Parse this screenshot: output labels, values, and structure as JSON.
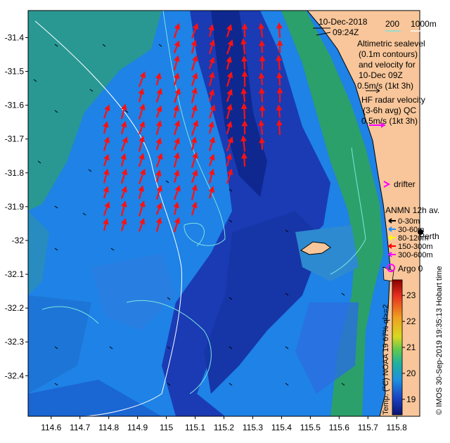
{
  "title": {
    "date": "10-Dec-2018",
    "time": "09:24Z"
  },
  "depth_legend": {
    "label_200": "200",
    "label_1000": "1000m",
    "contour_color": "#7fe3e0"
  },
  "altimetry_note": {
    "lines": [
      "Altimetric sealevel",
      "(0.1m contours)",
      "and velocity for",
      "10-Dec 09Z",
      "0.5m/s (1kt 3h)"
    ],
    "arrow_color": "#000000"
  },
  "hf_radar_note": {
    "lines": [
      "HF radar velocity",
      "(3-6h avg) QC",
      "0.5m/s (1kt 3h)"
    ],
    "arrow_color": "#ff00ff"
  },
  "drifter": {
    "label": "drifter",
    "color": "#ff00ff"
  },
  "anmn": {
    "title": "ANMN 12h av.",
    "items": [
      {
        "label": "0-30m",
        "color": "#000000"
      },
      {
        "label": "30-60m",
        "color": "#1e90ff"
      },
      {
        "label": "80-120m",
        "color": "#ffff00"
      },
      {
        "label": "150-300m",
        "color": "#ff0000"
      },
      {
        "label": "300-600m",
        "color": "#ff00ff"
      }
    ]
  },
  "city": {
    "label": "Perth"
  },
  "argo": {
    "label": "Argo 0",
    "color": "#ff00ff"
  },
  "colorbar": {
    "title": "Temp. (°C) NOAA 19 67% ql>=2",
    "ticks": [
      "23",
      "22",
      "21",
      "20",
      "19"
    ],
    "range": [
      18.4,
      23.6
    ]
  },
  "credit": "© IMOS 30-Sep-2019 19:35:13 Hobart time",
  "axes": {
    "x_ticks": [
      "114.6",
      "114.7",
      "114.8",
      "114.9",
      "115",
      "115.1",
      "115.2",
      "115.3",
      "115.4",
      "115.5",
      "115.6",
      "115.7",
      "115.8"
    ],
    "y_ticks": [
      "-31.4",
      "-31.5",
      "-31.6",
      "-31.7",
      "-31.8",
      "-31.9",
      "-32",
      "-32.1",
      "-32.2",
      "-32.3",
      "-32.4"
    ],
    "lon_range": [
      114.52,
      115.88
    ],
    "lat_range": [
      -32.52,
      -31.32
    ]
  },
  "colors": {
    "land": "#f8c69a",
    "warm": "#2a9d6a",
    "cool": "#1f3fb0",
    "mid": "#1e88e8",
    "hf_arrow": "#ff1010"
  }
}
